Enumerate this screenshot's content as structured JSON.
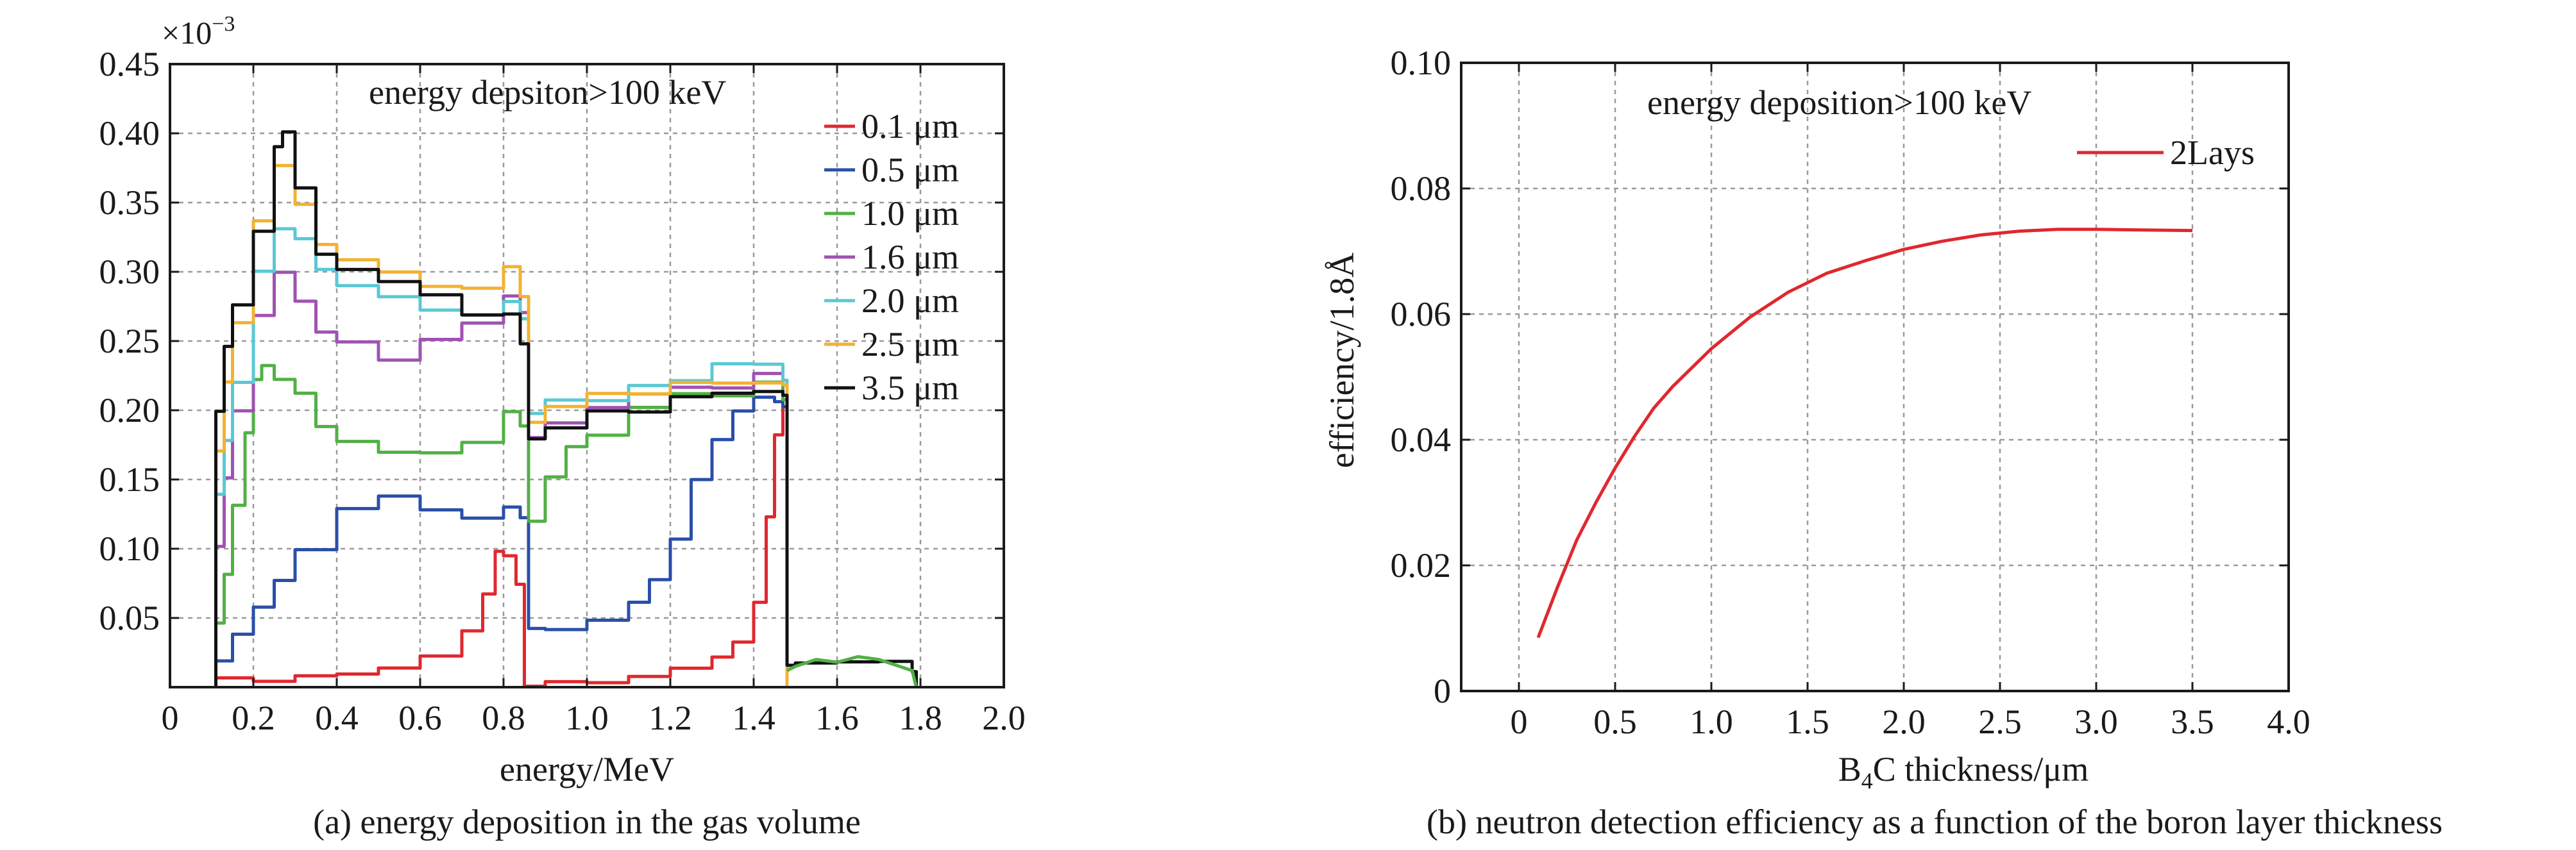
{
  "chart_data": [
    {
      "type": "line",
      "title": "",
      "caption": "(a) energy deposition in the gas volume",
      "annotation": "energy depsiton>100 keV",
      "xlabel": "energy/MeV",
      "ylabel": "",
      "y_multiplier": "×10",
      "y_multiplier_exp": "−3",
      "xlim": [
        0,
        2.0
      ],
      "ylim": [
        0,
        0.45
      ],
      "x_ticks": [
        0,
        0.2,
        0.4,
        0.6,
        0.8,
        1.0,
        1.2,
        1.4,
        1.6,
        1.8,
        2.0
      ],
      "x_tick_labels": [
        "0",
        "0.2",
        "0.4",
        "0.6",
        "0.8",
        "1.0",
        "1.2",
        "1.4",
        "1.6",
        "1.8",
        "2.0"
      ],
      "y_ticks": [
        0.05,
        0.1,
        0.15,
        0.2,
        0.25,
        0.3,
        0.35,
        0.4,
        0.45
      ],
      "y_tick_labels": [
        "0.05",
        "0.10",
        "0.15",
        "0.20",
        "0.25",
        "0.30",
        "0.35",
        "0.40",
        "0.45"
      ],
      "grid": true,
      "legend_position": "top-right",
      "series": [
        {
          "name": "0.1 μm",
          "color": "#e0282e",
          "x": [
            0.11,
            0.2,
            0.3,
            0.4,
            0.5,
            0.6,
            0.7,
            0.75,
            0.78,
            0.8,
            0.83,
            0.85,
            0.9,
            1.0,
            1.1,
            1.2,
            1.3,
            1.35,
            1.4,
            1.43,
            1.45,
            1.47,
            1.48
          ],
          "y": [
            0.003,
            0.004,
            0.006,
            0.008,
            0.012,
            0.02,
            0.04,
            0.07,
            0.1,
            0.095,
            0.075,
            0.004,
            0.004,
            0.004,
            0.006,
            0.01,
            0.02,
            0.03,
            0.06,
            0.12,
            0.18,
            0.2,
            0.0
          ]
        },
        {
          "name": "0.5 μm",
          "color": "#2a4fa8",
          "x": [
            0.11,
            0.15,
            0.2,
            0.25,
            0.3,
            0.4,
            0.5,
            0.6,
            0.7,
            0.8,
            0.84,
            0.86,
            0.9,
            1.0,
            1.1,
            1.15,
            1.2,
            1.25,
            1.3,
            1.35,
            1.4,
            1.45,
            1.47,
            1.48
          ],
          "y": [
            0.02,
            0.04,
            0.06,
            0.08,
            0.1,
            0.13,
            0.14,
            0.13,
            0.12,
            0.13,
            0.12,
            0.04,
            0.04,
            0.045,
            0.06,
            0.08,
            0.11,
            0.15,
            0.18,
            0.2,
            0.21,
            0.21,
            0.2,
            0.0
          ]
        },
        {
          "name": "1.0 μm",
          "color": "#52b045",
          "x": [
            0.11,
            0.13,
            0.15,
            0.18,
            0.2,
            0.22,
            0.25,
            0.3,
            0.35,
            0.4,
            0.5,
            0.6,
            0.7,
            0.8,
            0.84,
            0.86,
            0.9,
            0.95,
            1.0,
            1.1,
            1.2,
            1.3,
            1.4,
            1.47,
            1.48
          ],
          "y": [
            0.05,
            0.08,
            0.13,
            0.18,
            0.22,
            0.23,
            0.22,
            0.21,
            0.19,
            0.18,
            0.17,
            0.17,
            0.18,
            0.2,
            0.19,
            0.12,
            0.15,
            0.17,
            0.18,
            0.2,
            0.21,
            0.21,
            0.22,
            0.21,
            0.0
          ]
        },
        {
          "name": "1.6 μm",
          "color": "#a052b2",
          "x": [
            0.11,
            0.13,
            0.15,
            0.2,
            0.25,
            0.3,
            0.35,
            0.4,
            0.5,
            0.6,
            0.7,
            0.8,
            0.84,
            0.86,
            0.9,
            1.0,
            1.1,
            1.2,
            1.3,
            1.4,
            1.47,
            1.48
          ],
          "y": [
            0.1,
            0.15,
            0.2,
            0.27,
            0.3,
            0.28,
            0.26,
            0.25,
            0.24,
            0.25,
            0.26,
            0.28,
            0.27,
            0.18,
            0.19,
            0.2,
            0.21,
            0.22,
            0.22,
            0.23,
            0.22,
            0.0
          ]
        },
        {
          "name": "2.0 μm",
          "color": "#5bc8d4",
          "x": [
            0.11,
            0.13,
            0.15,
            0.2,
            0.25,
            0.3,
            0.35,
            0.4,
            0.5,
            0.6,
            0.7,
            0.8,
            0.84,
            0.86,
            0.9,
            1.0,
            1.1,
            1.2,
            1.3,
            1.4,
            1.47,
            1.48
          ],
          "y": [
            0.14,
            0.18,
            0.22,
            0.3,
            0.33,
            0.32,
            0.3,
            0.29,
            0.28,
            0.27,
            0.27,
            0.28,
            0.27,
            0.2,
            0.21,
            0.21,
            0.22,
            0.22,
            0.23,
            0.23,
            0.22,
            0.0
          ]
        },
        {
          "name": "2.5 μm",
          "color": "#f2b232",
          "x": [
            0.11,
            0.13,
            0.15,
            0.2,
            0.25,
            0.3,
            0.35,
            0.4,
            0.5,
            0.6,
            0.7,
            0.8,
            0.84,
            0.86,
            0.9,
            1.0,
            1.1,
            1.2,
            1.3,
            1.4,
            1.47,
            1.48
          ],
          "y": [
            0.17,
            0.22,
            0.26,
            0.34,
            0.38,
            0.35,
            0.32,
            0.31,
            0.3,
            0.29,
            0.29,
            0.3,
            0.28,
            0.19,
            0.2,
            0.21,
            0.21,
            0.22,
            0.22,
            0.22,
            0.22,
            0.0
          ]
        },
        {
          "name": "3.5 μm",
          "color": "#111111",
          "x": [
            0.11,
            0.13,
            0.15,
            0.2,
            0.25,
            0.27,
            0.3,
            0.35,
            0.4,
            0.5,
            0.6,
            0.7,
            0.8,
            0.84,
            0.86,
            0.9,
            1.0,
            1.1,
            1.2,
            1.3,
            1.4,
            1.47,
            1.48,
            1.5,
            1.6,
            1.7,
            1.78,
            1.79
          ],
          "y": [
            0.2,
            0.25,
            0.28,
            0.33,
            0.39,
            0.4,
            0.36,
            0.31,
            0.3,
            0.29,
            0.28,
            0.27,
            0.27,
            0.25,
            0.18,
            0.19,
            0.2,
            0.2,
            0.21,
            0.21,
            0.21,
            0.21,
            0.015,
            0.015,
            0.018,
            0.015,
            0.012,
            0.0
          ]
        }
      ],
      "tail_segment": {
        "x": [
          1.48,
          1.5,
          1.55,
          1.6,
          1.65,
          1.7,
          1.75,
          1.78,
          1.79
        ],
        "y": [
          0.012,
          0.015,
          0.02,
          0.018,
          0.022,
          0.02,
          0.015,
          0.012,
          0.0
        ]
      }
    },
    {
      "type": "line",
      "title": "",
      "caption": "(b) neutron detection efficiency as a function of the boron layer thickness",
      "annotation": "energy deposition>100 keV",
      "xlabel_main": "B",
      "xlabel_sub": "4",
      "xlabel_rest": "C thickness/μm",
      "ylabel": "efficiency/1.8Å",
      "xlim": [
        -0.3,
        4.0
      ],
      "ylim": [
        0,
        0.1
      ],
      "x_ticks": [
        0,
        0.5,
        1.0,
        1.5,
        2.0,
        2.5,
        3.0,
        3.5,
        4.0
      ],
      "x_tick_labels": [
        "0",
        "0.5",
        "1.0",
        "1.5",
        "2.0",
        "2.5",
        "3.0",
        "3.5",
        "4.0"
      ],
      "y_ticks": [
        0,
        0.02,
        0.04,
        0.06,
        0.08,
        0.1
      ],
      "y_tick_labels": [
        "0",
        "0.02",
        "0.04",
        "0.06",
        "0.08",
        "0.10"
      ],
      "grid": true,
      "legend_position": "top-right",
      "series": [
        {
          "name": "2Lays",
          "color": "#e0282e",
          "x": [
            0.1,
            0.2,
            0.3,
            0.4,
            0.5,
            0.6,
            0.7,
            0.8,
            0.9,
            1.0,
            1.2,
            1.4,
            1.6,
            1.8,
            2.0,
            2.2,
            2.4,
            2.6,
            2.8,
            3.0,
            3.2,
            3.5
          ],
          "y": [
            0.0085,
            0.0165,
            0.024,
            0.03,
            0.0355,
            0.0405,
            0.045,
            0.0485,
            0.0515,
            0.0545,
            0.0595,
            0.0635,
            0.0665,
            0.0685,
            0.0703,
            0.0716,
            0.0726,
            0.0732,
            0.0735,
            0.0735,
            0.0734,
            0.0733
          ]
        }
      ]
    }
  ]
}
